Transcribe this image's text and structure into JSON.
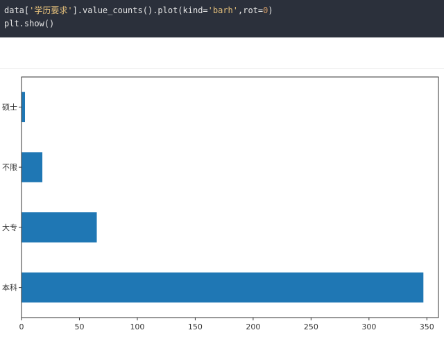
{
  "code": {
    "line1": {
      "prefix": "data[",
      "key": "'学历要求'",
      "middle": "].value_counts().plot(kind=",
      "kind": "'barh'",
      "rot_prefix": ",rot=",
      "rot": "0",
      "suffix": ")"
    },
    "line2": "plt.show()",
    "colors": {
      "background": "#2b303b",
      "text": "#e6e6e6",
      "string": "#e5c07b",
      "number": "#d19a66"
    }
  },
  "chart_data": {
    "type": "bar",
    "orientation": "horizontal",
    "categories": [
      "本科",
      "大专",
      "不限",
      "硕士"
    ],
    "values": [
      347,
      65,
      18,
      3
    ],
    "xlim": [
      0,
      360
    ],
    "xticks": [
      0,
      50,
      100,
      150,
      200,
      250,
      300,
      350
    ],
    "title": "",
    "xlabel": "",
    "ylabel": "",
    "grid": false,
    "bar_color": "#1f77b4"
  }
}
